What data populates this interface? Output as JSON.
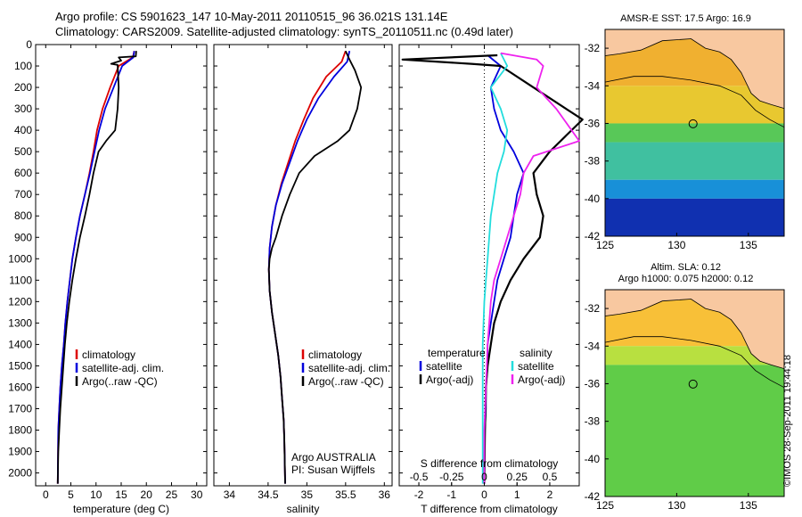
{
  "header": {
    "line1": "Argo profile: CS 5901623_147 10-May-2011 20110515_96 36.021S 131.14E",
    "line2": "Climatology: CARS2009. Satellite-adjusted climatology: synTS_20110511.nc (0.49d later)"
  },
  "watermark": "©IMOS 28-Sep-2011 19:44:18",
  "colors": {
    "climatology": "#dd0000",
    "satellite": "#0000dd",
    "argo": "#000000",
    "salinity_satellite": "#22dddd",
    "salinity_argo": "#ee22ee"
  },
  "chart_data": [
    {
      "type": "line",
      "id": "temperature",
      "xlabel": "temperature (deg C)",
      "ylabel": "",
      "xlim": [
        -2,
        32
      ],
      "ylim": [
        0,
        2060
      ],
      "y_inverted": true,
      "xticks": [
        0,
        5,
        10,
        15,
        20,
        25,
        30
      ],
      "yticks": [
        0,
        100,
        200,
        300,
        400,
        500,
        600,
        700,
        800,
        900,
        1000,
        1100,
        1200,
        1300,
        1400,
        1500,
        1600,
        1700,
        1800,
        1900,
        2000
      ],
      "legend": [
        "climatology",
        "satellite-adj. clim.",
        "Argo(..raw -QC)"
      ],
      "series": [
        {
          "name": "climatology",
          "color_key": "climatology",
          "x": [
            17.6,
            17.3,
            14.5,
            12.8,
            11.3,
            10.2,
            9.5,
            8.7,
            7.8,
            6.8,
            6.0,
            5.3,
            4.8,
            4.3,
            3.9,
            3.6,
            3.2,
            2.9,
            2.7,
            2.5,
            2.4
          ],
          "y": [
            30,
            60,
            100,
            200,
            300,
            400,
            500,
            600,
            700,
            800,
            900,
            1000,
            1100,
            1200,
            1300,
            1400,
            1500,
            1600,
            1700,
            1800,
            2050
          ]
        },
        {
          "name": "satellite-adj. clim.",
          "color_key": "satellite",
          "x": [
            17.6,
            17.4,
            15.2,
            13.5,
            11.8,
            10.6,
            9.7,
            8.8,
            7.8,
            6.8,
            6.0,
            5.3,
            4.8,
            4.3,
            3.9,
            3.6,
            3.2,
            2.9,
            2.7,
            2.5,
            2.4
          ],
          "y": [
            30,
            60,
            100,
            200,
            300,
            400,
            500,
            600,
            700,
            800,
            900,
            1000,
            1100,
            1200,
            1300,
            1400,
            1500,
            1600,
            1700,
            1800,
            2050
          ]
        },
        {
          "name": "Argo(..raw -QC)",
          "color_key": "argo",
          "x": [
            18.0,
            17.9,
            14.5,
            15.0,
            13.0,
            14.3,
            14.5,
            14.3,
            13.8,
            12.0,
            10.5,
            9.5,
            8.7,
            7.8,
            6.8,
            6.0,
            5.3,
            4.7,
            4.2,
            3.8,
            3.5,
            3.2,
            2.9,
            2.7,
            2.5,
            2.4
          ],
          "y": [
            30,
            55,
            60,
            75,
            90,
            95,
            200,
            300,
            400,
            450,
            500,
            600,
            700,
            800,
            900,
            1000,
            1100,
            1200,
            1300,
            1400,
            1500,
            1600,
            1700,
            1800,
            1900,
            2050
          ]
        }
      ]
    },
    {
      "type": "line",
      "id": "salinity",
      "xlabel": "salinity",
      "ylabel": "",
      "xlim": [
        33.8,
        36.1
      ],
      "ylim": [
        0,
        2060
      ],
      "y_inverted": true,
      "xticks": [
        34,
        34.5,
        35,
        35.5,
        36
      ],
      "legend": [
        "climatology",
        "satellite-adj. clim.",
        "Argo(..raw -QC)"
      ],
      "annotation": [
        "Argo AUSTRALIA",
        "PI: Susan Wijffels"
      ],
      "series": [
        {
          "name": "climatology",
          "color_key": "climatology",
          "x": [
            35.5,
            35.45,
            35.25,
            35.08,
            34.96,
            34.85,
            34.76,
            34.67,
            34.6,
            34.55,
            34.52,
            34.51,
            34.52,
            34.55,
            34.59,
            34.63,
            34.66,
            34.68,
            34.7,
            34.71,
            34.72
          ],
          "y": [
            30,
            80,
            150,
            250,
            350,
            450,
            550,
            650,
            750,
            850,
            950,
            1050,
            1150,
            1250,
            1350,
            1450,
            1550,
            1650,
            1750,
            1850,
            2050
          ]
        },
        {
          "name": "satellite-adj. clim.",
          "color_key": "satellite",
          "x": [
            35.55,
            35.52,
            35.35,
            35.15,
            35.0,
            34.88,
            34.78,
            34.68,
            34.6,
            34.55,
            34.52,
            34.51,
            34.52,
            34.55,
            34.59,
            34.63,
            34.66,
            34.68,
            34.7,
            34.71,
            34.72
          ],
          "y": [
            30,
            80,
            150,
            250,
            350,
            450,
            550,
            650,
            750,
            850,
            950,
            1050,
            1150,
            1250,
            1350,
            1450,
            1550,
            1650,
            1750,
            1850,
            2050
          ]
        },
        {
          "name": "Argo(..raw -QC)",
          "color_key": "argo",
          "x": [
            35.5,
            35.55,
            35.62,
            35.7,
            35.65,
            35.55,
            35.4,
            35.1,
            34.9,
            34.78,
            34.68,
            34.6,
            34.55,
            34.52,
            34.51,
            34.52,
            34.55,
            34.59,
            34.63,
            34.66,
            34.68,
            34.7,
            34.71,
            34.72
          ],
          "y": [
            30,
            70,
            120,
            200,
            300,
            400,
            450,
            520,
            600,
            700,
            800,
            900,
            950,
            1000,
            1050,
            1150,
            1250,
            1350,
            1450,
            1550,
            1650,
            1750,
            1850,
            2050
          ]
        }
      ]
    },
    {
      "type": "line",
      "id": "difference",
      "xlabel": "T difference from climatology",
      "xlabel_top": "S difference from climatology",
      "ylabel": "",
      "xlim": [
        -2.6,
        2.9
      ],
      "ylim": [
        0,
        2060
      ],
      "y_inverted": true,
      "xticks": [
        -2,
        -1,
        0,
        1,
        2
      ],
      "s_ticks": [
        "-0.5",
        "-0.25",
        "0",
        "0.25",
        "0.5"
      ],
      "s_tick_positions": [
        -2,
        -1,
        0,
        1,
        2
      ],
      "legend_headers": [
        "temperature",
        "salinity"
      ],
      "legend": [
        "satellite",
        "Argo(-adj)",
        "satellite",
        "Argo(-adj)"
      ],
      "series": [
        {
          "name": "temperature satellite",
          "color_key": "satellite",
          "x": [
            0.1,
            0.5,
            0.2,
            0.3,
            0.5,
            0.9,
            1.2,
            1.0,
            0.9,
            0.8,
            0.6,
            0.4,
            0.3,
            0.2,
            0.1,
            0.1,
            0.05,
            0.05,
            0.02,
            0.0
          ],
          "y": [
            50,
            100,
            200,
            300,
            400,
            500,
            600,
            700,
            800,
            900,
            1000,
            1100,
            1200,
            1300,
            1400,
            1500,
            1600,
            1700,
            1800,
            2050
          ]
        },
        {
          "name": "temperature Argo(-adj)",
          "color_key": "argo",
          "x": [
            0.4,
            -2.5,
            -0.4,
            0.5,
            1.5,
            3.0,
            2.0,
            1.5,
            1.6,
            1.8,
            1.7,
            1.2,
            0.8,
            0.5,
            0.3,
            0.2,
            0.1,
            0.05,
            0.02,
            0.0
          ],
          "y": [
            50,
            70,
            90,
            100,
            200,
            350,
            500,
            600,
            700,
            800,
            900,
            1000,
            1100,
            1200,
            1300,
            1400,
            1500,
            1600,
            1800,
            2050
          ]
        },
        {
          "name": "salinity satellite",
          "color_key": "salinity_satellite",
          "x": [
            0.5,
            0.7,
            0.2,
            0.5,
            0.7,
            0.6,
            0.4,
            0.3,
            0.2,
            0.15,
            0.1,
            0.05,
            0.0,
            -0.05,
            -0.05,
            -0.05,
            -0.05,
            -0.05
          ],
          "y": [
            40,
            100,
            200,
            300,
            400,
            500,
            600,
            700,
            800,
            900,
            1000,
            1100,
            1200,
            1400,
            1600,
            1800,
            1900,
            2050
          ]
        },
        {
          "name": "salinity Argo(-adj)",
          "color_key": "salinity_argo",
          "x": [
            0.5,
            1.6,
            1.8,
            1.6,
            2.2,
            2.9,
            1.5,
            1.2,
            1.1,
            0.9,
            0.7,
            0.5,
            0.3,
            0.2,
            0.1,
            0.05,
            0.0,
            0.0
          ],
          "y": [
            40,
            70,
            100,
            200,
            300,
            450,
            520,
            600,
            700,
            800,
            900,
            1000,
            1100,
            1200,
            1400,
            1600,
            1800,
            2050
          ]
        }
      ]
    },
    {
      "type": "heatmap",
      "id": "sst-map",
      "title": "AMSR-E SST: 17.5 Argo: 16.9",
      "xlim": [
        125,
        137.5
      ],
      "ylim": [
        -42,
        -31
      ],
      "xticks": [
        125,
        130,
        135
      ],
      "yticks": [
        -32,
        -34,
        -36,
        -38,
        -40,
        -42
      ],
      "marker": {
        "lon": 131.14,
        "lat": -36.02
      },
      "color_bands": [
        {
          "lat_top": -31,
          "lat_bottom": -34,
          "color": "#f0b030"
        },
        {
          "lat_top": -34,
          "lat_bottom": -36,
          "color": "#e8c830"
        },
        {
          "lat_top": -36,
          "lat_bottom": -37,
          "color": "#58c858"
        },
        {
          "lat_top": -37,
          "lat_bottom": -39,
          "color": "#40c0a0"
        },
        {
          "lat_top": -39,
          "lat_bottom": -40,
          "color": "#1890d8"
        },
        {
          "lat_top": -40,
          "lat_bottom": -42,
          "color": "#1030b0"
        }
      ],
      "land_color": "#f8c8a0"
    },
    {
      "type": "heatmap",
      "id": "sla-map",
      "title": [
        "Altim. SLA: 0.12",
        "Argo h1000: 0.075 h2000: 0.12"
      ],
      "xlim": [
        125,
        137.5
      ],
      "ylim": [
        -42,
        -31
      ],
      "xticks": [
        125,
        130,
        135
      ],
      "yticks": [
        -32,
        -34,
        -36,
        -38,
        -40,
        -42
      ],
      "marker": {
        "lon": 131.14,
        "lat": -36.02
      },
      "color_bands": [
        {
          "lat_top": -31,
          "lat_bottom": -34,
          "color": "#f8c038"
        },
        {
          "lat_top": -34,
          "lat_bottom": -35,
          "color": "#b8e040"
        },
        {
          "lat_top": -35,
          "lat_bottom": -42,
          "color": "#60cc48"
        }
      ],
      "land_color": "#f8c8a0"
    }
  ]
}
